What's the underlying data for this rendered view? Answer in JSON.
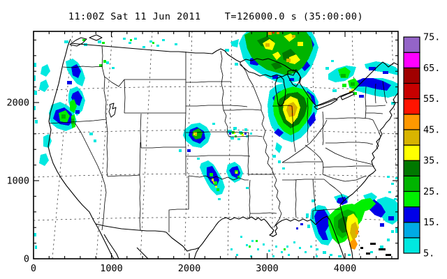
{
  "title": {
    "left": "11:00Z Sat 11 Jun 2011",
    "right": "T=126000.0 s (35:00:00)"
  },
  "axes": {
    "x": {
      "tick_values": [
        0,
        1000,
        2000,
        3000,
        4000
      ],
      "tick_labels": [
        "0",
        "1000",
        "2000",
        "3000",
        "4000"
      ]
    },
    "y": {
      "tick_values": [
        0,
        1000,
        2000
      ],
      "tick_labels": [
        "0",
        "1000",
        "2000"
      ]
    }
  },
  "colorbar": {
    "labels_bottom_to_top": [
      "5.",
      "15.",
      "25.",
      "35.",
      "45.",
      "55.",
      "65.",
      "75."
    ],
    "box_colors_bottom_to_top": [
      "#00E8E0",
      "#00AAE4",
      "#0000E8",
      "#00F000",
      "#00B400",
      "#007800",
      "#FFFF00",
      "#D8B400",
      "#FF9800",
      "#FF1400",
      "#C80000",
      "#A00000",
      "#FF00FF",
      "#9464C8"
    ]
  },
  "chart_data": {
    "type": "heatmap",
    "title": "11:00Z Sat 11 Jun 2011  T=126000.0 s (35:00:00)",
    "xlabel": "",
    "ylabel": "",
    "x_ticks": [
      0,
      1000,
      2000,
      3000,
      4000
    ],
    "y_ticks": [
      0,
      1000,
      2000
    ],
    "xlim": [
      0,
      4680
    ],
    "ylim": [
      0,
      2920
    ],
    "grid": "lat-lon dashed graticule over US state map outlines",
    "legend_position": "right colorbar",
    "colorbar_levels": [
      5,
      10,
      15,
      20,
      25,
      30,
      35,
      40,
      45,
      50,
      55,
      60,
      65,
      70,
      75
    ],
    "series": [
      {
        "name": "Pacific Northwest echoes",
        "approx_center_xy": [
          450,
          1900
        ],
        "max_level": 25
      },
      {
        "name": "Lake Superior / Upper Michigan system",
        "approx_center_xy": [
          3050,
          2650
        ],
        "max_level": 55
      },
      {
        "name": "Lower Michigan / Ohio Valley cell",
        "approx_center_xy": [
          3300,
          1900
        ],
        "max_level": 50
      },
      {
        "name": "Northeast / New England band",
        "approx_center_xy": [
          4200,
          2300
        ],
        "max_level": 40
      },
      {
        "name": "Kansas cell",
        "approx_center_xy": [
          2100,
          1600
        ],
        "max_level": 40
      },
      {
        "name": "Oklahoma line",
        "approx_center_xy": [
          2300,
          1000
        ],
        "max_level": 40
      },
      {
        "name": "Florida / Southeast coast system",
        "approx_center_xy": [
          4100,
          400
        ],
        "max_level": 50
      },
      {
        "name": "Gulf of Mexico scattered showers",
        "approx_center_xy": [
          3200,
          300
        ],
        "max_level": 20
      }
    ]
  }
}
